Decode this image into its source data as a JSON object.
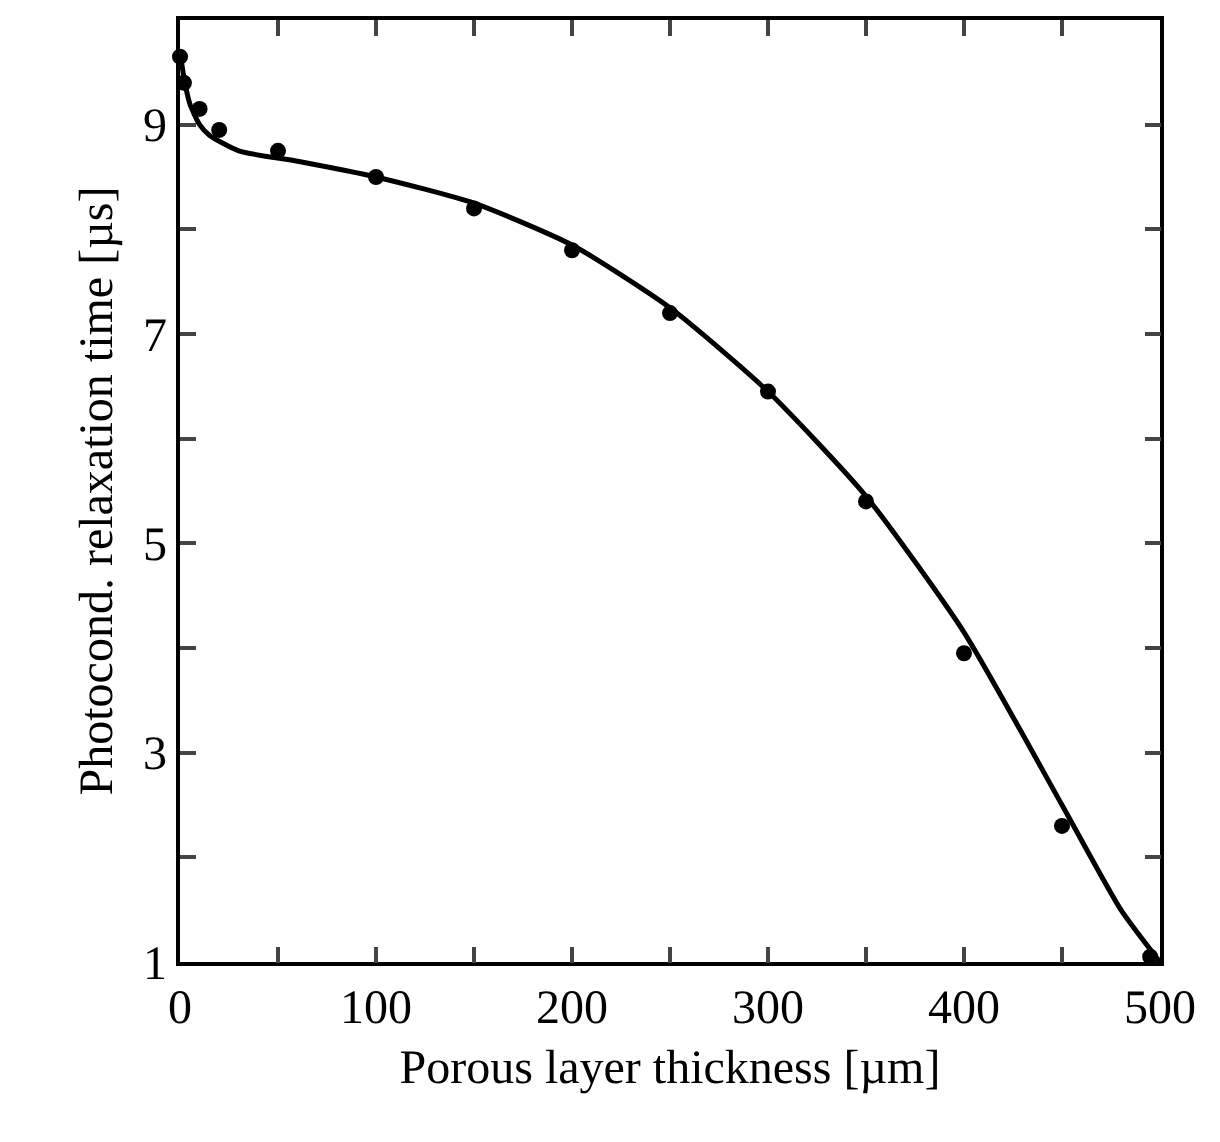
{
  "chart_data": {
    "type": "scatter",
    "xlabel": "Porous layer thickness [µm]",
    "ylabel": "Photocond. relaxation time [µs]",
    "xlim": [
      0,
      500
    ],
    "ylim": [
      1,
      10
    ],
    "xticks": [
      0,
      {
        "value": 50,
        "label": null
      },
      100,
      {
        "value": 150,
        "label": null
      },
      200,
      {
        "value": 250,
        "label": null
      },
      300,
      {
        "value": 350,
        "label": null
      },
      400,
      {
        "value": 450,
        "label": null
      },
      500
    ],
    "yticks": [
      1,
      {
        "value": 2,
        "label": null
      },
      3,
      {
        "value": 4,
        "label": null
      },
      5,
      {
        "value": 6,
        "label": null
      },
      7,
      {
        "value": 8,
        "label": null
      },
      9,
      {
        "value": 10,
        "label": null
      }
    ],
    "grid": false,
    "marker": "circle",
    "series": [
      {
        "color": "#000000",
        "x": [
          0,
          2,
          10,
          20,
          50,
          100,
          150,
          200,
          250,
          300,
          350,
          400,
          450,
          495
        ],
        "values": [
          9.65,
          9.4,
          9.15,
          8.95,
          8.75,
          8.5,
          8.2,
          7.8,
          7.2,
          6.45,
          5.4,
          3.95,
          2.3,
          1.05
        ]
      },
      {
        "type": "line",
        "color": "#000000",
        "marker": "none",
        "line_style": "solid",
        "x": [
          0,
          2,
          5,
          10,
          15,
          30,
          60,
          100,
          150,
          200,
          250,
          300,
          350,
          400,
          450,
          480,
          500
        ],
        "values": [
          9.7,
          9.45,
          9.2,
          9.0,
          8.9,
          8.75,
          8.65,
          8.5,
          8.25,
          7.85,
          7.25,
          6.45,
          5.45,
          4.15,
          2.5,
          1.5,
          1.0
        ]
      }
    ]
  }
}
